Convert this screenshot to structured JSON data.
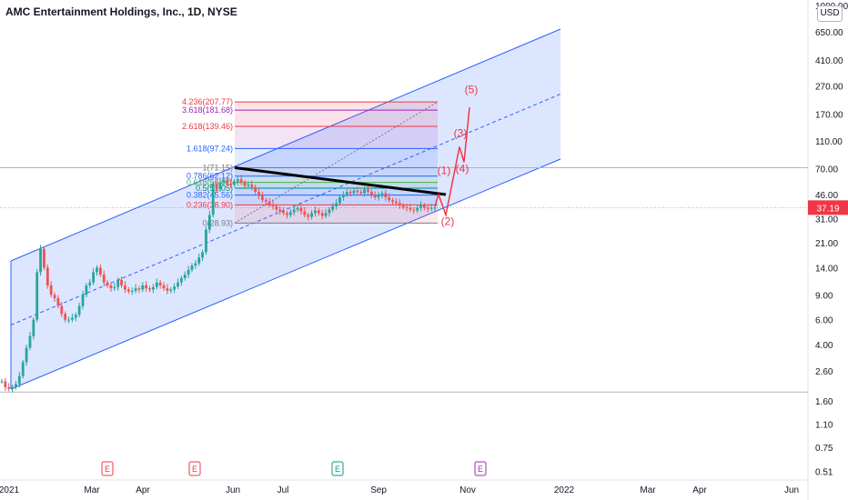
{
  "title": "AMC Entertainment Holdings, Inc., 1D, NYSE",
  "currency_button": "USD",
  "chart_data": {
    "type": "candlestick",
    "symbol": "AMC",
    "interval": "1D",
    "exchange": "NYSE",
    "y_scale": "log",
    "ylim": [
      0.45,
      1000
    ],
    "y_ticks": [
      "1000.00",
      "650.00",
      "410.00",
      "270.00",
      "170.00",
      "110.00",
      "70.00",
      "46.00",
      "31.00",
      "21.00",
      "14.00",
      "9.00",
      "6.00",
      "4.00",
      "2.60",
      "1.60",
      "1.10",
      "0.75",
      "0.51"
    ],
    "x_ticks": [
      "2021",
      "Mar",
      "Apr",
      "Jun",
      "Jul",
      "Sep",
      "Nov",
      "2022",
      "Mar",
      "Apr",
      "Jun"
    ],
    "last_price": "37.19",
    "last_price_color": "#f23645",
    "up_color": "#26a69a",
    "down_color": "#ef5350",
    "price_path": [
      2.2,
      2.0,
      1.95,
      2.0,
      2.1,
      2.4,
      3.0,
      3.8,
      4.6,
      6.0,
      13.0,
      19.0,
      14.0,
      10.5,
      9.0,
      8.5,
      7.5,
      6.6,
      6.0,
      6.0,
      6.2,
      6.5,
      7.5,
      9.0,
      10.5,
      11.0,
      13.0,
      14.0,
      12.5,
      11.0,
      10.5,
      10.0,
      10.2,
      11.5,
      10.5,
      9.8,
      9.5,
      9.6,
      10.0,
      9.8,
      10.5,
      10.0,
      9.8,
      10.2,
      11.0,
      10.5,
      10.0,
      9.6,
      9.8,
      10.3,
      11.0,
      11.8,
      12.5,
      13.5,
      14.5,
      15.0,
      16.5,
      18.0,
      26.0,
      33.0,
      55.0,
      50.0,
      56.0,
      58.0,
      55.0,
      54.0,
      57.0,
      59.0,
      56.0,
      53.0,
      54.0,
      52.0,
      48.0,
      45.0,
      42.0,
      41.0,
      39.0,
      38.0,
      36.0,
      35.0,
      34.0,
      33.0,
      34.5,
      36.0,
      37.0,
      35.0,
      33.0,
      32.0,
      34.0,
      35.5,
      34.0,
      32.5,
      34.0,
      36.0,
      38.0,
      40.0,
      44.0,
      46.0,
      48.0,
      47.0,
      49.0,
      48.0,
      47.0,
      50.0,
      48.0,
      46.0,
      44.0,
      45.0,
      47.0,
      44.0,
      42.0,
      41.0,
      40.0,
      38.5,
      37.5,
      37.0,
      36.0,
      35.5,
      37.0,
      38.5,
      37.0,
      36.5,
      37.0,
      37.19
    ],
    "annotations": {
      "fibonacci_levels": [
        {
          "ratio": "0",
          "label": "0(28.93)",
          "price": 28.93
        },
        {
          "ratio": "0.236",
          "label": "0.236(38.90)",
          "price": 38.9
        },
        {
          "ratio": "0.382",
          "label": "0.382(45.56)",
          "price": 45.56
        },
        {
          "ratio": "0.5",
          "label": "0.5(51.05)",
          "price": 51.05
        },
        {
          "ratio": "0.618",
          "label": "0.618(56.02)",
          "price": 56.02
        },
        {
          "ratio": "0.786",
          "label": "0.786(62.12)",
          "price": 62.12
        },
        {
          "ratio": "1",
          "label": "1(71.15)",
          "price": 71.15
        },
        {
          "ratio": "1.618",
          "label": "1.618(97.24)",
          "price": 97.24
        },
        {
          "ratio": "2.618",
          "label": "2.618(139.46)",
          "price": 139.46
        },
        {
          "ratio": "3.618",
          "label": "3.618(181.68)",
          "price": 181.68
        },
        {
          "ratio": "4.236",
          "label": "4.236(207.77)",
          "price": 207.77
        }
      ],
      "elliott_wave_labels": [
        "(1)",
        "(2)",
        "(3)",
        "(4)",
        "(5)"
      ],
      "earnings_markers": [
        "E",
        "E",
        "E",
        "E"
      ],
      "horizontal_lines": [
        71.15,
        1.85
      ],
      "parallel_channel": "ascending"
    }
  }
}
